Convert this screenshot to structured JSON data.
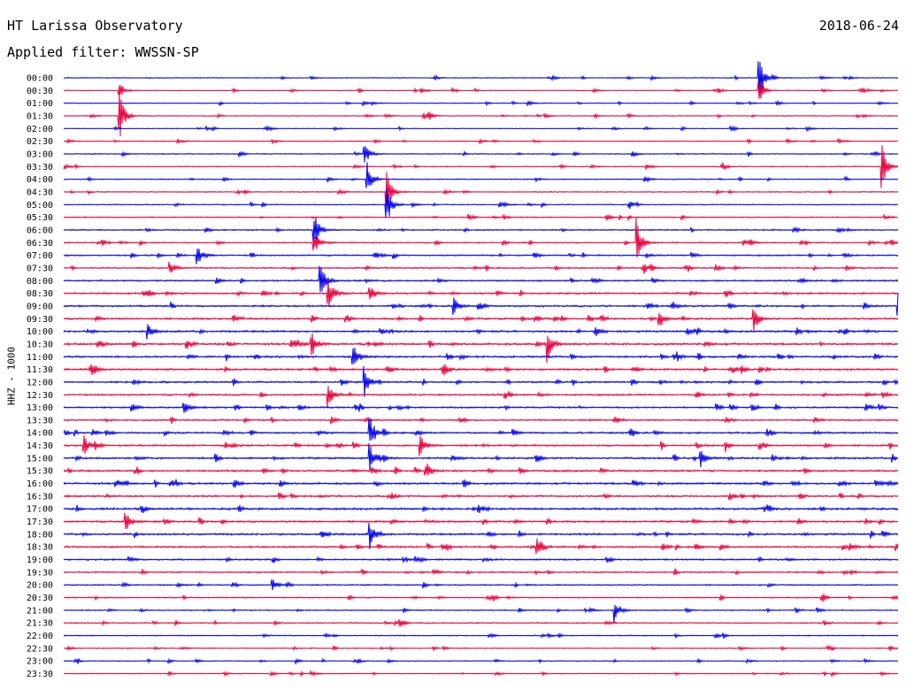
{
  "header": {
    "station": "HT Larissa Observatory",
    "date": "2018-06-24",
    "filter_label": "Applied filter: WWSSN-SP"
  },
  "chart_data": {
    "type": "line",
    "ylabel": "HHZ - 1000",
    "row_labels": [
      "00:00",
      "00:30",
      "01:00",
      "01:30",
      "02:00",
      "02:30",
      "03:00",
      "03:30",
      "04:00",
      "04:30",
      "05:00",
      "05:30",
      "06:00",
      "06:30",
      "07:00",
      "07:30",
      "08:00",
      "08:30",
      "09:00",
      "09:30",
      "10:00",
      "10:30",
      "11:00",
      "11:30",
      "12:00",
      "12:30",
      "13:00",
      "13:30",
      "14:00",
      "14:30",
      "15:00",
      "15:30",
      "16:00",
      "16:30",
      "17:00",
      "17:30",
      "18:00",
      "18:30",
      "19:00",
      "19:30",
      "20:00",
      "20:30",
      "21:00",
      "21:30",
      "22:00",
      "22:30",
      "23:00",
      "23:30"
    ],
    "trace_colors": [
      "#0000e6",
      "#e6003c"
    ],
    "noise_level": [
      0.25,
      0.25,
      0.25,
      0.25,
      0.22,
      0.25,
      0.3,
      0.3,
      0.3,
      0.3,
      0.3,
      0.35,
      0.4,
      0.4,
      0.45,
      0.45,
      0.5,
      0.55,
      0.55,
      0.6,
      0.6,
      0.65,
      0.6,
      0.6,
      0.55,
      0.55,
      0.5,
      0.5,
      0.55,
      0.55,
      0.6,
      0.6,
      0.6,
      0.55,
      0.65,
      0.6,
      0.6,
      0.55,
      0.5,
      0.45,
      0.4,
      0.35,
      0.35,
      0.35,
      0.3,
      0.3,
      0.25,
      0.25
    ],
    "events": [
      {
        "row": 0,
        "minute": 25.0,
        "amp": 28
      },
      {
        "row": 1,
        "minute": 25.0,
        "amp": 14
      },
      {
        "row": 1,
        "minute": 2.0,
        "amp": 10
      },
      {
        "row": 3,
        "minute": 2.0,
        "amp": 30
      },
      {
        "row": 6,
        "minute": 10.8,
        "amp": 14
      },
      {
        "row": 7,
        "minute": 29.4,
        "amp": 30
      },
      {
        "row": 8,
        "minute": 10.9,
        "amp": 22
      },
      {
        "row": 9,
        "minute": 11.6,
        "amp": 24
      },
      {
        "row": 10,
        "minute": 11.6,
        "amp": 26
      },
      {
        "row": 12,
        "minute": 9.0,
        "amp": 18
      },
      {
        "row": 13,
        "minute": 20.6,
        "amp": 28
      },
      {
        "row": 13,
        "minute": 9.0,
        "amp": 14
      },
      {
        "row": 14,
        "minute": 4.8,
        "amp": 12
      },
      {
        "row": 15,
        "minute": 3.8,
        "amp": 10
      },
      {
        "row": 16,
        "minute": 9.2,
        "amp": 26
      },
      {
        "row": 17,
        "minute": 9.5,
        "amp": 20
      },
      {
        "row": 17,
        "minute": 11.0,
        "amp": 12
      },
      {
        "row": 18,
        "minute": 14.0,
        "amp": 12
      },
      {
        "row": 18,
        "minute": 30.0,
        "amp": 16
      },
      {
        "row": 19,
        "minute": 24.8,
        "amp": 16
      },
      {
        "row": 19,
        "minute": 21.4,
        "amp": 12
      },
      {
        "row": 20,
        "minute": 3.0,
        "amp": 9
      },
      {
        "row": 21,
        "minute": 8.9,
        "amp": 18
      },
      {
        "row": 21,
        "minute": 17.4,
        "amp": 20
      },
      {
        "row": 22,
        "minute": 10.4,
        "amp": 16
      },
      {
        "row": 23,
        "minute": 1.0,
        "amp": 10
      },
      {
        "row": 24,
        "minute": 10.8,
        "amp": 18
      },
      {
        "row": 25,
        "minute": 9.5,
        "amp": 16
      },
      {
        "row": 26,
        "minute": 4.3,
        "amp": 10
      },
      {
        "row": 28,
        "minute": 11.0,
        "amp": 22
      },
      {
        "row": 29,
        "minute": 0.7,
        "amp": 14
      },
      {
        "row": 29,
        "minute": 12.8,
        "amp": 16
      },
      {
        "row": 30,
        "minute": 11.0,
        "amp": 18
      },
      {
        "row": 30,
        "minute": 22.9,
        "amp": 10
      },
      {
        "row": 31,
        "minute": 13.0,
        "amp": 12
      },
      {
        "row": 35,
        "minute": 2.2,
        "amp": 14
      },
      {
        "row": 36,
        "minute": 11.0,
        "amp": 18
      },
      {
        "row": 37,
        "minute": 17.0,
        "amp": 14
      },
      {
        "row": 42,
        "minute": 19.8,
        "amp": 14
      },
      {
        "row": 40,
        "minute": 7.5,
        "amp": 8
      }
    ]
  }
}
